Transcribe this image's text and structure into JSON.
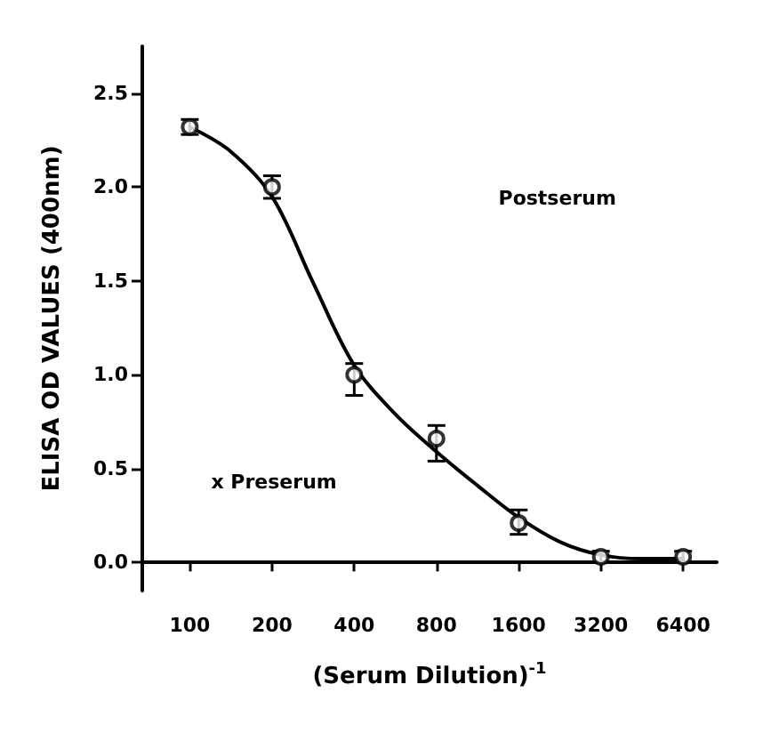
{
  "chart_data": {
    "type": "scatter",
    "xlabel": "(Serum Dilution)$^{-1}$",
    "ylabel": "ELISA OD VALUES (400nm)",
    "log": "x",
    "xlim": [
      67,
      8500
    ],
    "xticks": [
      100,
      200,
      400,
      800,
      1600,
      3200,
      6400
    ],
    "ylim": [
      -0.15,
      2.75
    ],
    "yticks": [
      {
        "value": 0,
        "label": "0.0"
      },
      {
        "value": 0.5,
        "label": "0.5"
      },
      {
        "value": 1,
        "label": "1.0"
      },
      {
        "value": 1.5,
        "label": "1.5"
      },
      {
        "value": 2,
        "label": "2.0"
      },
      {
        "value": 2.5,
        "label": "2.5"
      }
    ],
    "series": [
      {
        "color": "#000000",
        "marker": "circle",
        "x": [
          100,
          200,
          400,
          800,
          1600,
          3200,
          6400
        ],
        "values": [
          2.32,
          2.0,
          1.0,
          0.66,
          0.21,
          0.03,
          0.03
        ],
        "errors": [
          0.04,
          0.06,
          [
            0.89,
            1.06
          ],
          [
            0.54,
            0.73
          ],
          [
            0.15,
            0.28
          ],
          0.03,
          0.03
        ]
      },
      {
        "type": "line",
        "color": "#000000",
        "marker": "none",
        "line_style": "solid",
        "x": [
          100,
          141,
          200,
          283,
          400,
          566,
          800,
          1131,
          1600,
          2263,
          3200,
          4525,
          6400
        ],
        "values": [
          2.32,
          2.19,
          1.95,
          1.49,
          1.05,
          0.79,
          0.59,
          0.41,
          0.24,
          0.11,
          0.04,
          0.02,
          0.02
        ]
      }
    ],
    "annotations": [
      "Postserum",
      "x Preserum"
    ]
  }
}
